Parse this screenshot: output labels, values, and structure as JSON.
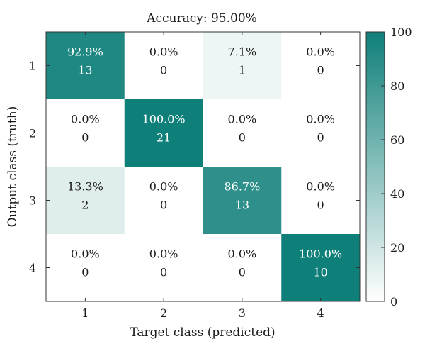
{
  "chart_data": {
    "type": "heatmap",
    "title": "Accuracy: 95.00%",
    "xlabel": "Target class (predicted)",
    "ylabel": "Output class (truth)",
    "x_categories": [
      "1",
      "2",
      "3",
      "4"
    ],
    "y_categories": [
      "1",
      "2",
      "3",
      "4"
    ],
    "percent_labels": [
      [
        "92.9%",
        "0.0%",
        "7.1%",
        "0.0%"
      ],
      [
        "0.0%",
        "100.0%",
        "0.0%",
        "0.0%"
      ],
      [
        "13.3%",
        "0.0%",
        "86.7%",
        "0.0%"
      ],
      [
        "0.0%",
        "0.0%",
        "0.0%",
        "100.0%"
      ]
    ],
    "percent_values": [
      [
        92.9,
        0.0,
        7.1,
        0.0
      ],
      [
        0.0,
        100.0,
        0.0,
        0.0
      ],
      [
        13.3,
        0.0,
        86.7,
        0.0
      ],
      [
        0.0,
        0.0,
        0.0,
        100.0
      ]
    ],
    "count_labels": [
      [
        "13",
        "0",
        "1",
        "0"
      ],
      [
        "0",
        "21",
        "0",
        "0"
      ],
      [
        "2",
        "0",
        "13",
        "0"
      ],
      [
        "0",
        "0",
        "0",
        "10"
      ]
    ],
    "colorbar": {
      "range": [
        0,
        100
      ],
      "ticks": [
        "0",
        "20",
        "40",
        "60",
        "80",
        "100"
      ],
      "color_low": "#ffffff",
      "color_high": "#0f7f79"
    },
    "grid": false
  }
}
